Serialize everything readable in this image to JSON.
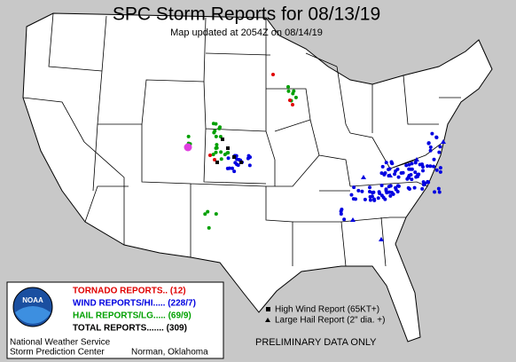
{
  "header": {
    "title": "SPC Storm Reports for 08/13/19",
    "subtitle": "Map updated at 2054Z on 08/14/19"
  },
  "legend": {
    "rows": [
      {
        "text": "TORNADO REPORTS.. (12)",
        "color": "#e00000"
      },
      {
        "text": "WIND REPORTS/HI..... (228/7)",
        "color": "#0000e0"
      },
      {
        "text": "HAIL REPORTS/LG..... (69/9)",
        "color": "#00a000"
      },
      {
        "text": "TOTAL REPORTS....... (309)",
        "color": "#000000"
      }
    ],
    "logo": "NOAA",
    "agency": [
      "National Weather Service",
      "Storm Prediction Center"
    ],
    "location": "Norman, Oklahoma"
  },
  "key": [
    "High Wind Report (65KT+)",
    "Large Hail Report (2\" dia. +)"
  ],
  "footer": "PRELIMINARY DATA ONLY"
}
